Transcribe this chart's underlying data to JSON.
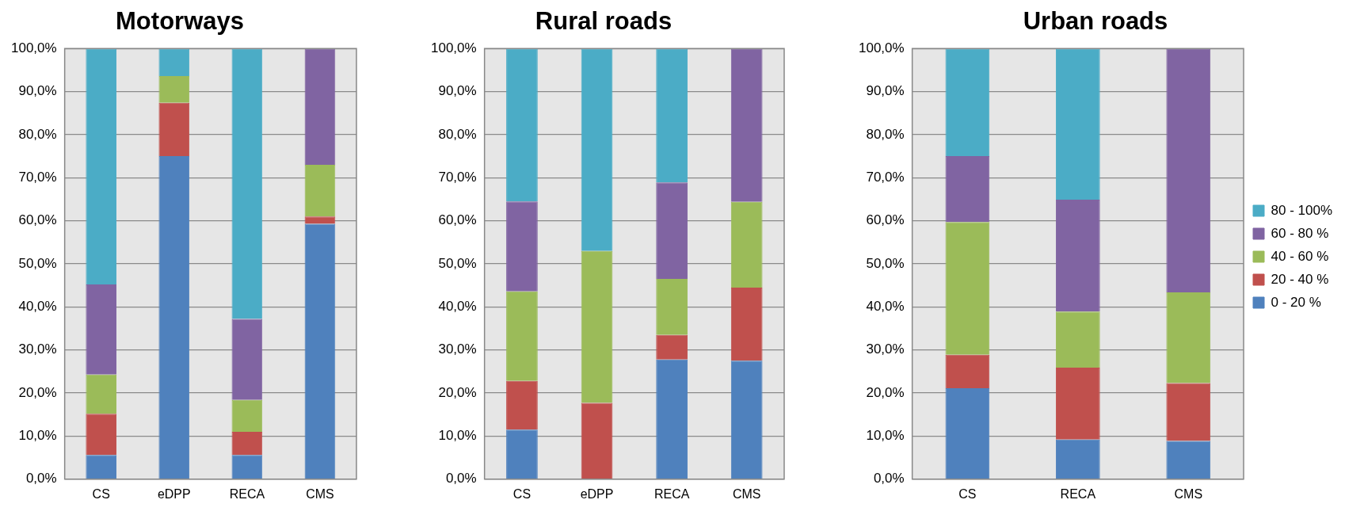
{
  "chart_data": [
    {
      "type": "bar",
      "title": "Motorways",
      "categories": [
        "CS",
        "eDPP",
        "RECA",
        "CMS"
      ],
      "stacked": true,
      "grid": "y",
      "legend": false,
      "ylim": [
        0,
        100
      ],
      "yticks": [
        {
          "value": 0,
          "label": "0,0%"
        },
        {
          "value": 10,
          "label": "10,0%"
        },
        {
          "value": 20,
          "label": "20,0%"
        },
        {
          "value": 30,
          "label": "30,0%"
        },
        {
          "value": 40,
          "label": "40,0%"
        },
        {
          "value": 50,
          "label": "50,0%"
        },
        {
          "value": 60,
          "label": "60,0%"
        },
        {
          "value": 70,
          "label": "70,0%"
        },
        {
          "value": 80,
          "label": "80,0%"
        },
        {
          "value": 90,
          "label": "90,0%"
        },
        {
          "value": 100,
          "label": "100,0%"
        }
      ],
      "series": [
        {
          "color": "#4f81bd",
          "values": [
            5.6,
            75,
            5.6,
            59.3
          ]
        },
        {
          "color": "#c0504d",
          "values": [
            9.6,
            12.4,
            5.4,
            1.7
          ]
        },
        {
          "color": "#9bbb59",
          "values": [
            9.1,
            6.2,
            7.4,
            12
          ]
        },
        {
          "color": "#8064a2",
          "values": [
            20.9,
            0,
            18.8,
            27
          ]
        },
        {
          "color": "#4bacc6",
          "values": [
            54.8,
            6.4,
            62.8,
            0
          ]
        }
      ]
    },
    {
      "type": "bar",
      "title": "Rural roads",
      "categories": [
        "CS",
        "eDPP",
        "RECA",
        "CMS"
      ],
      "stacked": true,
      "grid": "y",
      "legend": false,
      "ylim": [
        0,
        100
      ],
      "yticks": [
        {
          "value": 0,
          "label": "0,0%"
        },
        {
          "value": 10,
          "label": "10,0%"
        },
        {
          "value": 20,
          "label": "20,0%"
        },
        {
          "value": 30,
          "label": "30,0%"
        },
        {
          "value": 40,
          "label": "40,0%"
        },
        {
          "value": 50,
          "label": "50,0%"
        },
        {
          "value": 60,
          "label": "60,0%"
        },
        {
          "value": 70,
          "label": "70,0%"
        },
        {
          "value": 80,
          "label": "80,0%"
        },
        {
          "value": 90,
          "label": "90,0%"
        },
        {
          "value": 100,
          "label": "100,0%"
        }
      ],
      "series": [
        {
          "color": "#4f81bd",
          "values": [
            11.5,
            0,
            27.8,
            27.5
          ]
        },
        {
          "color": "#c0504d",
          "values": [
            11.3,
            17.7,
            5.7,
            17
          ]
        },
        {
          "color": "#9bbb59",
          "values": [
            20.8,
            35.3,
            13,
            19.9
          ]
        },
        {
          "color": "#8064a2",
          "values": [
            20.9,
            0,
            22.4,
            35.6
          ]
        },
        {
          "color": "#4bacc6",
          "values": [
            35.5,
            47,
            31.1,
            0
          ]
        }
      ]
    },
    {
      "type": "bar",
      "title": "Urban roads",
      "categories": [
        "CS",
        "RECA",
        "CMS"
      ],
      "stacked": true,
      "grid": "y",
      "legend": "right",
      "ylim": [
        0,
        100
      ],
      "yticks": [
        {
          "value": 0,
          "label": "0,0%"
        },
        {
          "value": 10,
          "label": "10,0%"
        },
        {
          "value": 20,
          "label": "20,0%"
        },
        {
          "value": 30,
          "label": "30,0%"
        },
        {
          "value": 40,
          "label": "40,0%"
        },
        {
          "value": 50,
          "label": "50,0%"
        },
        {
          "value": 60,
          "label": "60,0%"
        },
        {
          "value": 70,
          "label": "70,0%"
        },
        {
          "value": 80,
          "label": "80,0%"
        },
        {
          "value": 90,
          "label": "90,0%"
        },
        {
          "value": 100,
          "label": "100,0%"
        }
      ],
      "series": [
        {
          "name": "0 - 20 %",
          "color": "#4f81bd",
          "values": [
            21.1,
            9.2,
            8.9
          ]
        },
        {
          "name": "20 - 40 %",
          "color": "#c0504d",
          "values": [
            7.8,
            16.7,
            13.4
          ]
        },
        {
          "name": "40 - 60 %",
          "color": "#9bbb59",
          "values": [
            30.8,
            13,
            21.1
          ]
        },
        {
          "name": "60 - 80 %",
          "color": "#8064a2",
          "values": [
            15.3,
            26,
            56.6
          ]
        },
        {
          "name": "80 - 100%",
          "color": "#4bacc6",
          "values": [
            25,
            35.1,
            0
          ]
        }
      ]
    }
  ]
}
